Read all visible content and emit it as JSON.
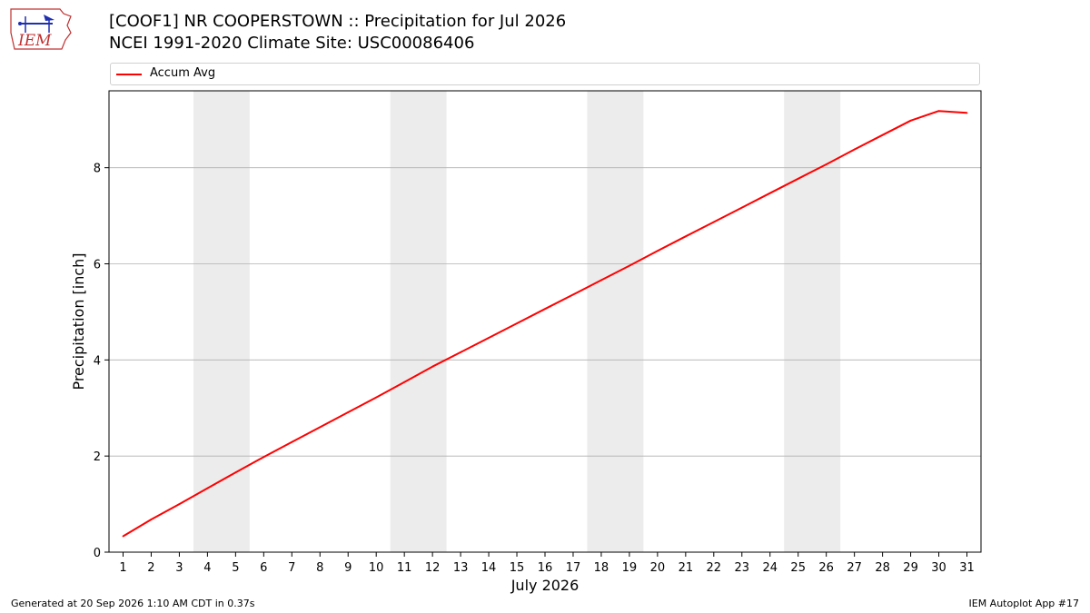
{
  "header": {
    "title_line1": "[COOF1] NR COOPERSTOWN :: Precipitation for Jul 2026",
    "title_line2": "NCEI 1991-2020 Climate Site: USC00086406"
  },
  "logo": {
    "text": "IEM",
    "icon": "iem-logo-icon"
  },
  "colors": {
    "line": "#ff0000",
    "weekend_band": "#ececec",
    "grid": "#b0b0b0",
    "logo": "#c03030",
    "logo_blue": "#1f2fb0"
  },
  "footer": {
    "generated": "Generated at 20 Sep 2026 1:10 AM CDT in 0.37s",
    "app": "IEM Autoplot App #17"
  },
  "chart_data": {
    "type": "line",
    "xlabel": "July 2026",
    "ylabel": "Precipitation [inch]",
    "xlim": [
      0.5,
      31.5
    ],
    "ylim": [
      0,
      9.6
    ],
    "yticks": [
      0,
      2,
      4,
      6,
      8
    ],
    "x": [
      1,
      2,
      3,
      4,
      5,
      6,
      7,
      8,
      9,
      10,
      11,
      12,
      13,
      14,
      15,
      16,
      17,
      18,
      19,
      20,
      21,
      22,
      23,
      24,
      25,
      26,
      27,
      28,
      29,
      30,
      31
    ],
    "grid": "horizontal",
    "legend": "top",
    "weekend_bands": [
      [
        3.5,
        5.5
      ],
      [
        10.5,
        12.5
      ],
      [
        17.5,
        19.5
      ],
      [
        24.5,
        26.5
      ]
    ],
    "series": [
      {
        "name": "Accum Avg",
        "values": [
          0.33,
          0.68,
          1.0,
          1.33,
          1.66,
          1.98,
          2.29,
          2.6,
          2.91,
          3.22,
          3.54,
          3.86,
          4.16,
          4.46,
          4.76,
          5.06,
          5.36,
          5.66,
          5.96,
          6.27,
          6.57,
          6.87,
          7.17,
          7.47,
          7.77,
          8.07,
          8.38,
          8.68,
          8.98,
          9.18,
          9.14
        ]
      }
    ]
  }
}
